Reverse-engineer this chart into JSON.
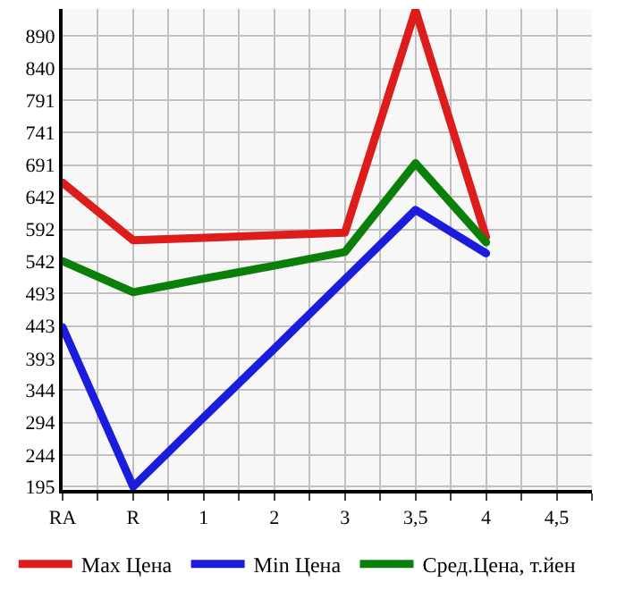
{
  "chart_data": {
    "type": "line",
    "categories": [
      "RA",
      "R",
      "1",
      "2",
      "3",
      "3,5",
      "4",
      "4,5"
    ],
    "series": [
      {
        "name": "Max Цена",
        "color": "#dd1c1c",
        "values": [
          664,
          575,
          579,
          583,
          587,
          930,
          580,
          null
        ]
      },
      {
        "name": "Min Цена",
        "color": "#1c1cdd",
        "values": [
          441,
          195,
          302,
          408,
          515,
          622,
          555,
          null
        ]
      },
      {
        "name": "Сред.Цена, т.йен",
        "color": "#0a800a",
        "values": [
          543,
          495,
          516,
          536,
          557,
          694,
          572,
          null
        ]
      }
    ],
    "ylim": [
      190,
      932
    ],
    "yticks": [
      195,
      244,
      294,
      344,
      393,
      443,
      493,
      542,
      592,
      642,
      691,
      741,
      791,
      840,
      890
    ],
    "grid": true,
    "legend": "bottom",
    "marker": "none",
    "line_style": "solid"
  }
}
